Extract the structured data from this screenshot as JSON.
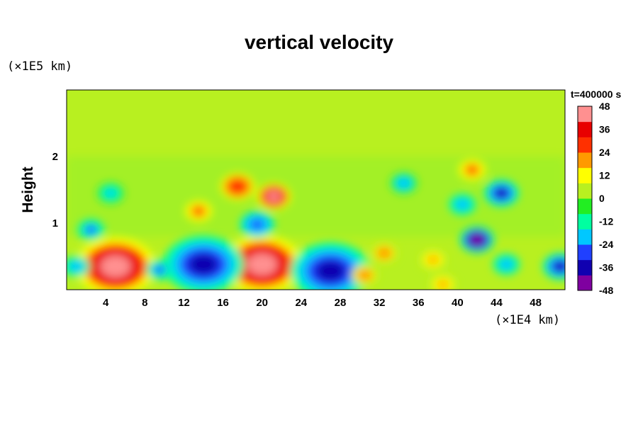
{
  "chart_data": {
    "type": "heatmap",
    "title": "vertical velocity",
    "ylabel": "Height",
    "y_unit": "(×1E5 km)",
    "x_unit": "(×1E4 km)",
    "time_label": "t=400000 s",
    "xlim": [
      0,
      51
    ],
    "ylim": [
      0,
      3
    ],
    "x_ticks": [
      4,
      8,
      12,
      16,
      20,
      24,
      28,
      32,
      36,
      40,
      44,
      48
    ],
    "y_ticks": [
      1,
      2
    ],
    "colorbar": {
      "range": [
        -48,
        48
      ],
      "ticks": [
        48,
        36,
        24,
        12,
        0,
        -12,
        -24,
        -36,
        -48
      ],
      "colors": [
        "#7f00a0",
        "#1000b0",
        "#2040ff",
        "#00c8ff",
        "#00ffa0",
        "#22ee22",
        "#b8f020",
        "#ffff00",
        "#ff9a00",
        "#ff3000",
        "#e80000",
        "#ff9090"
      ]
    },
    "features": [
      {
        "x": 5.0,
        "y": 0.35,
        "value": 44
      },
      {
        "x": 20.0,
        "y": 0.38,
        "value": 42
      },
      {
        "x": 14.0,
        "y": 0.38,
        "value": -40
      },
      {
        "x": 27.0,
        "y": 0.28,
        "value": -40
      },
      {
        "x": 9.5,
        "y": 0.3,
        "value": -26
      },
      {
        "x": 50.5,
        "y": 0.35,
        "value": -34
      },
      {
        "x": 1.0,
        "y": 0.35,
        "value": -24
      },
      {
        "x": 32.5,
        "y": 0.55,
        "value": 20
      },
      {
        "x": 37.5,
        "y": 0.45,
        "value": 18
      },
      {
        "x": 30.5,
        "y": 0.22,
        "value": 22
      },
      {
        "x": 42.0,
        "y": 0.75,
        "value": -44
      },
      {
        "x": 45.0,
        "y": 0.38,
        "value": -24
      },
      {
        "x": 38.5,
        "y": 0.08,
        "value": 16
      },
      {
        "x": 21.2,
        "y": 1.4,
        "value": 40
      },
      {
        "x": 17.5,
        "y": 1.55,
        "value": 30
      },
      {
        "x": 13.5,
        "y": 1.18,
        "value": 26
      },
      {
        "x": 44.5,
        "y": 1.45,
        "value": -34
      },
      {
        "x": 40.5,
        "y": 1.28,
        "value": -24
      },
      {
        "x": 41.5,
        "y": 1.8,
        "value": 26
      },
      {
        "x": 4.5,
        "y": 1.45,
        "value": -18
      },
      {
        "x": 2.5,
        "y": 0.9,
        "value": -26
      },
      {
        "x": 19.5,
        "y": 0.98,
        "value": -30
      },
      {
        "x": 34.5,
        "y": 1.6,
        "value": -22
      }
    ]
  }
}
